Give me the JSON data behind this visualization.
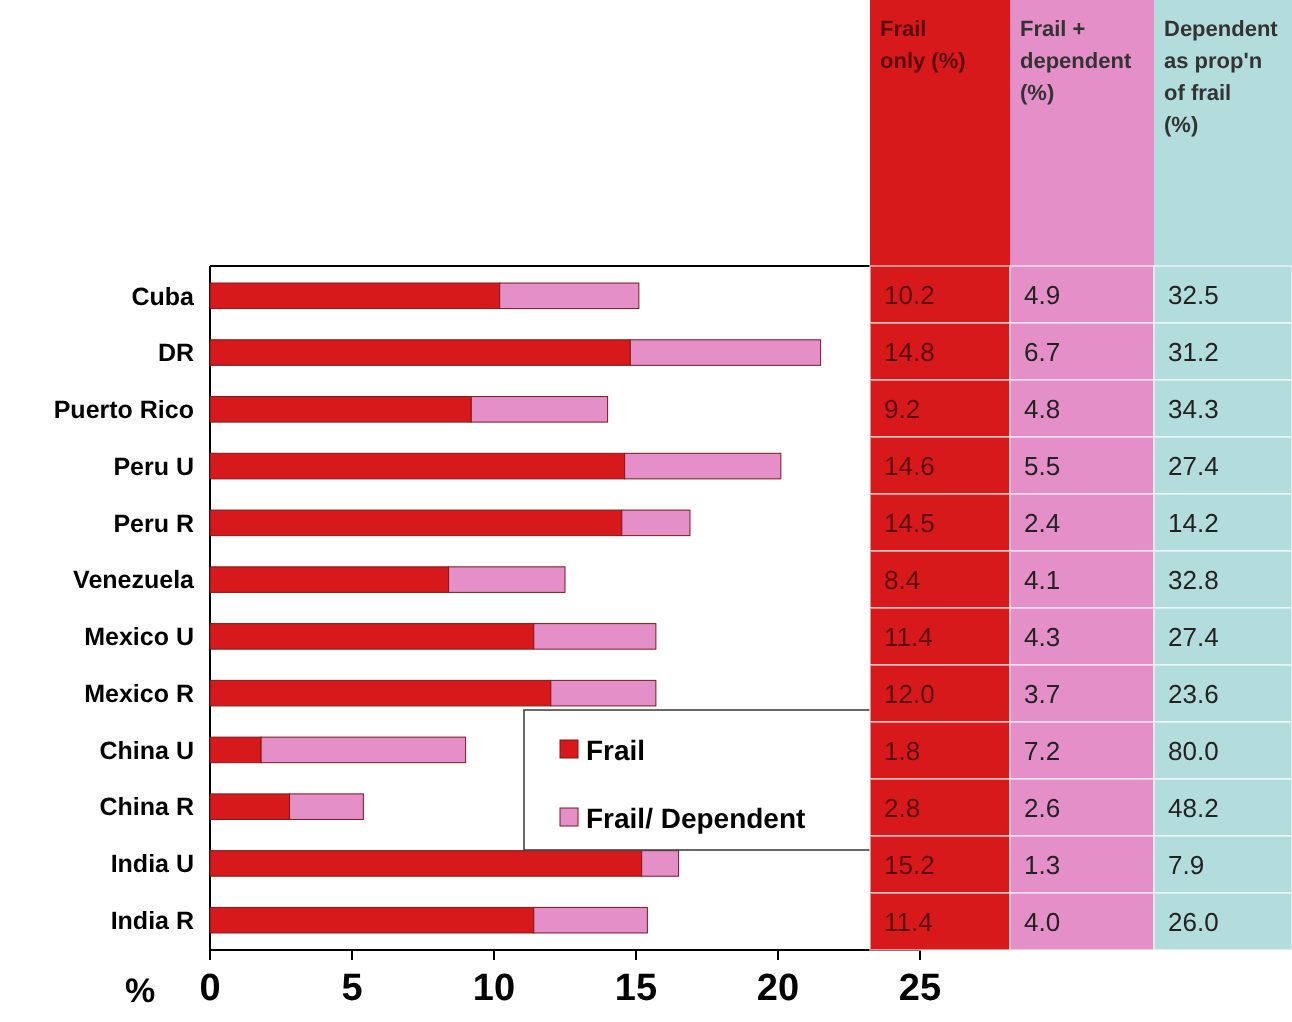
{
  "chart_data": [
    {
      "type": "bar",
      "orientation": "horizontal",
      "stacked": true,
      "xlabel": "%",
      "categories": [
        "Cuba",
        "DR",
        "Puerto Rico",
        "Peru U",
        "Peru R",
        "Venezuela",
        "Mexico U",
        "Mexico R",
        "China U",
        "China R",
        "India U",
        "India R"
      ],
      "series": [
        {
          "name": "Frail",
          "color": "#d7191c",
          "values": [
            10.2,
            14.8,
            9.2,
            14.6,
            14.5,
            8.4,
            11.4,
            12.0,
            1.8,
            2.8,
            15.2,
            11.4
          ]
        },
        {
          "name": "Frail/ Dependent",
          "color": "#e58fc8",
          "values": [
            4.9,
            6.7,
            4.8,
            5.5,
            2.4,
            4.1,
            4.3,
            3.7,
            7.2,
            2.6,
            1.3,
            4.0
          ]
        }
      ],
      "xlim": [
        0,
        25
      ],
      "xticks": [
        0,
        5,
        10,
        15,
        20,
        25
      ],
      "legend": "bottom right"
    },
    {
      "type": "other",
      "categories": [
        "Frail only (%)",
        "Frail + dependent (%)",
        "Dependent as prop'n of frail (%)"
      ],
      "colors": [
        "#d7191c",
        "#e58fc8",
        "#b3dcdc"
      ],
      "cells": [
        [
          "10.2",
          "4.9",
          "32.5"
        ],
        [
          "14.8",
          "6.7",
          "31.2"
        ],
        [
          "9.2",
          "4.8",
          "34.3"
        ],
        [
          "14.6",
          "5.5",
          "27.4"
        ],
        [
          "14.5",
          "2.4",
          "14.2"
        ],
        [
          "8.4",
          "4.1",
          "32.8"
        ],
        [
          "11.4",
          "4.3",
          "27.4"
        ],
        [
          "12.0",
          "3.7",
          "23.6"
        ],
        [
          "1.8",
          "7.2",
          "80.0"
        ],
        [
          "2.8",
          "2.6",
          "48.2"
        ],
        [
          "15.2",
          "1.3",
          "7.9"
        ],
        [
          "11.4",
          "4.0",
          "26.0"
        ]
      ]
    }
  ]
}
